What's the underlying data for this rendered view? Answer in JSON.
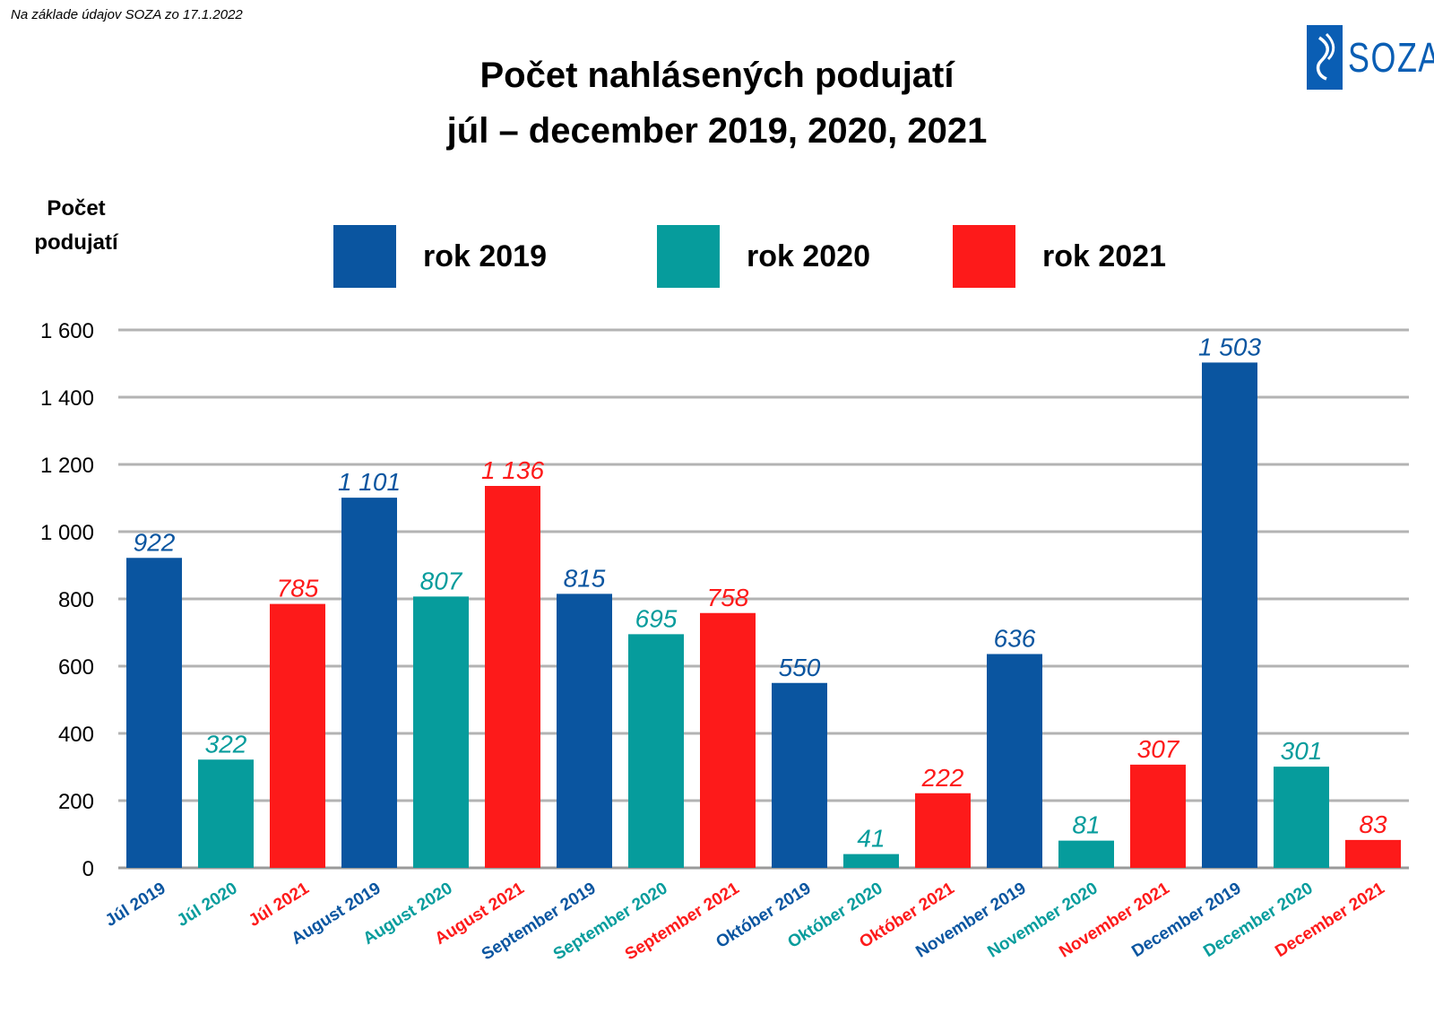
{
  "source_note": "Na základe údajov SOZA zo 17.1.2022",
  "logo": {
    "text": "SOZA",
    "color": "#0a5eb4"
  },
  "title_line1": "Počet nahlásených podujatí",
  "title_line2": "júl – december 2019, 2020, 2021",
  "ylabel_line1": "Počet",
  "ylabel_line2": "podujatí",
  "legend": [
    {
      "label": "rok 2019",
      "color": "#0a55a0"
    },
    {
      "label": "rok 2020",
      "color": "#069c9c"
    },
    {
      "label": "rok 2021",
      "color": "#fd1a1a"
    }
  ],
  "chart_data": {
    "type": "bar",
    "ylim": [
      0,
      1600
    ],
    "yticks": [
      0,
      200,
      400,
      600,
      800,
      1000,
      1200,
      1400,
      1600
    ],
    "ytick_labels": [
      "0",
      "200",
      "400",
      "600",
      "800",
      "1 000",
      "1 200",
      "1 400",
      "1 600"
    ],
    "grid": true,
    "legend_position": "top",
    "categories": [
      "Júl 2019",
      "Júl  2020",
      "Júl 2021",
      "August 2019",
      "August 2020",
      "August 2021",
      "September 2019",
      "September 2020",
      "September 2021",
      "Október 2019",
      "Október  2020",
      "Október 2021",
      "November 2019",
      "November 2020",
      "November 2021",
      "December 2019",
      "December 2020",
      "December 2021"
    ],
    "values": [
      922,
      322,
      785,
      1101,
      807,
      1136,
      815,
      695,
      758,
      550,
      41,
      222,
      636,
      81,
      307,
      1503,
      301,
      83
    ],
    "value_labels": [
      "922",
      "322",
      "785",
      "1 101",
      "807",
      "1 136",
      "815",
      "695",
      "758",
      "550",
      "41",
      "222",
      "636",
      "81",
      "307",
      "1 503",
      "301",
      "83"
    ],
    "series_index": [
      0,
      1,
      2,
      0,
      1,
      2,
      0,
      1,
      2,
      0,
      1,
      2,
      0,
      1,
      2,
      0,
      1,
      2
    ],
    "colors": [
      "#0a55a0",
      "#069c9c",
      "#fd1a1a"
    ]
  }
}
